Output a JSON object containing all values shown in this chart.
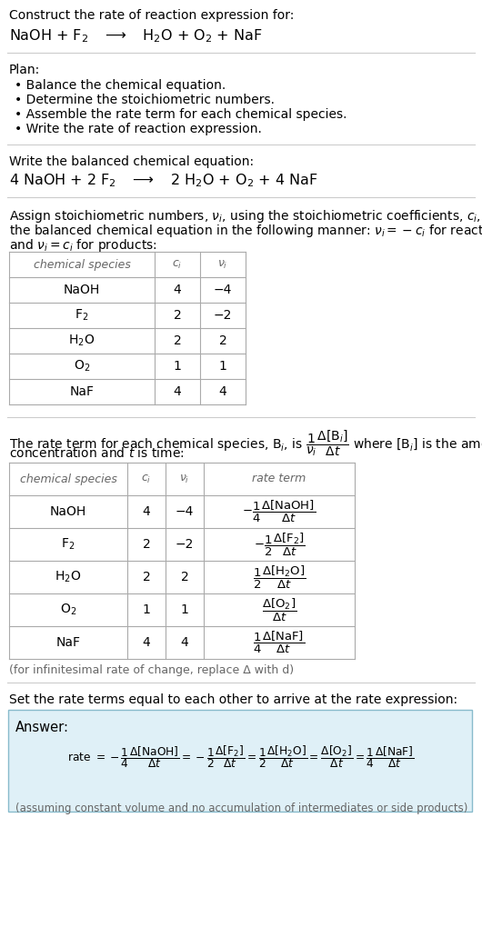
{
  "bg_color": "#ffffff",
  "text_color": "#000000",
  "gray_text": "#666666",
  "table_border": "#aaaaaa",
  "answer_bg": "#dff0f7",
  "answer_border": "#88bbcc",
  "section1_title": "Construct the rate of reaction expression for:",
  "plan_title": "Plan:",
  "plan_items": [
    "• Balance the chemical equation.",
    "• Determine the stoichiometric numbers.",
    "• Assemble the rate term for each chemical species.",
    "• Write the rate of reaction expression."
  ],
  "balanced_title": "Write the balanced chemical equation:",
  "assign_text1": "Assign stoichiometric numbers, $\\nu_i$, using the stoichiometric coefficients, $c_i$, from",
  "assign_text2": "the balanced chemical equation in the following manner: $\\nu_i = -c_i$ for reactants",
  "assign_text3": "and $\\nu_i = c_i$ for products:",
  "table1_headers": [
    "chemical species",
    "$c_i$",
    "$\\nu_i$"
  ],
  "table1_col1": [
    "NaOH",
    "F$_2$",
    "H$_2$O",
    "O$_2$",
    "NaF"
  ],
  "table1_col2": [
    "4",
    "2",
    "2",
    "1",
    "4"
  ],
  "table1_col3": [
    "−4",
    "−2",
    "2",
    "1",
    "4"
  ],
  "rate_text2": "concentration and $t$ is time:",
  "table2_headers": [
    "chemical species",
    "$c_i$",
    "$\\nu_i$",
    "rate term"
  ],
  "table2_col1": [
    "NaOH",
    "F$_2$",
    "H$_2$O",
    "O$_2$",
    "NaF"
  ],
  "table2_col2": [
    "4",
    "2",
    "2",
    "1",
    "4"
  ],
  "table2_col3": [
    "−4",
    "−2",
    "2",
    "1",
    "4"
  ],
  "infinitesimal_note": "(for infinitesimal rate of change, replace Δ with d)",
  "set_text": "Set the rate terms equal to each other to arrive at the rate expression:",
  "answer_label": "Answer:",
  "answer_note": "(assuming constant volume and no accumulation of intermediates or side products)"
}
